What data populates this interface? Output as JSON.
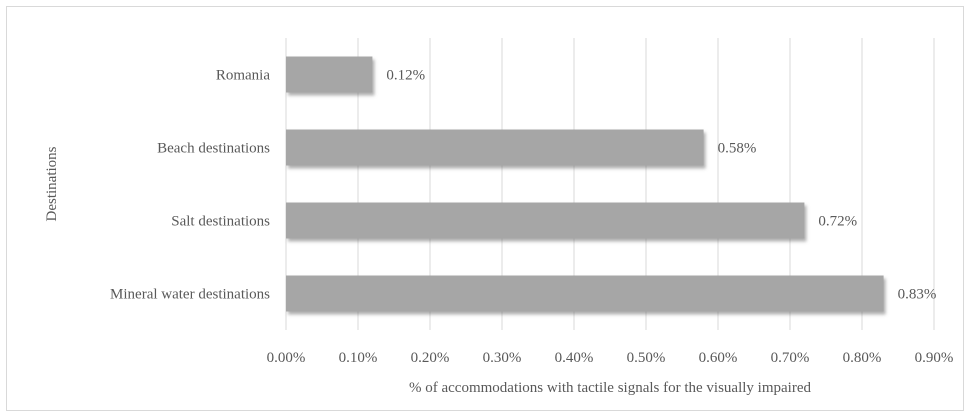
{
  "chart_data": {
    "type": "bar",
    "orientation": "horizontal",
    "categories": [
      "Romania",
      "Beach destinations",
      "Salt destinations",
      "Mineral water destinations"
    ],
    "values": [
      0.12,
      0.58,
      0.72,
      0.83
    ],
    "data_labels": [
      "0.12%",
      "0.58%",
      "0.72%",
      "0.83%"
    ],
    "xlabel": "% of accommodations with tactile signals for the visually impaired",
    "ylabel": "Destinations",
    "xlim": [
      0,
      0.9
    ],
    "xticks": [
      0,
      0.1,
      0.2,
      0.3,
      0.4,
      0.5,
      0.6,
      0.7,
      0.8,
      0.9
    ],
    "xtick_labels": [
      "0.00%",
      "0.10%",
      "0.20%",
      "0.30%",
      "0.40%",
      "0.50%",
      "0.60%",
      "0.70%",
      "0.80%",
      "0.90%"
    ],
    "grid": "vertical",
    "legend": "none",
    "colors": {
      "bar": "#a6a6a6",
      "bar_shadow": "#7f7f7f",
      "grid": "#d9d9d9",
      "text": "#595959"
    }
  }
}
